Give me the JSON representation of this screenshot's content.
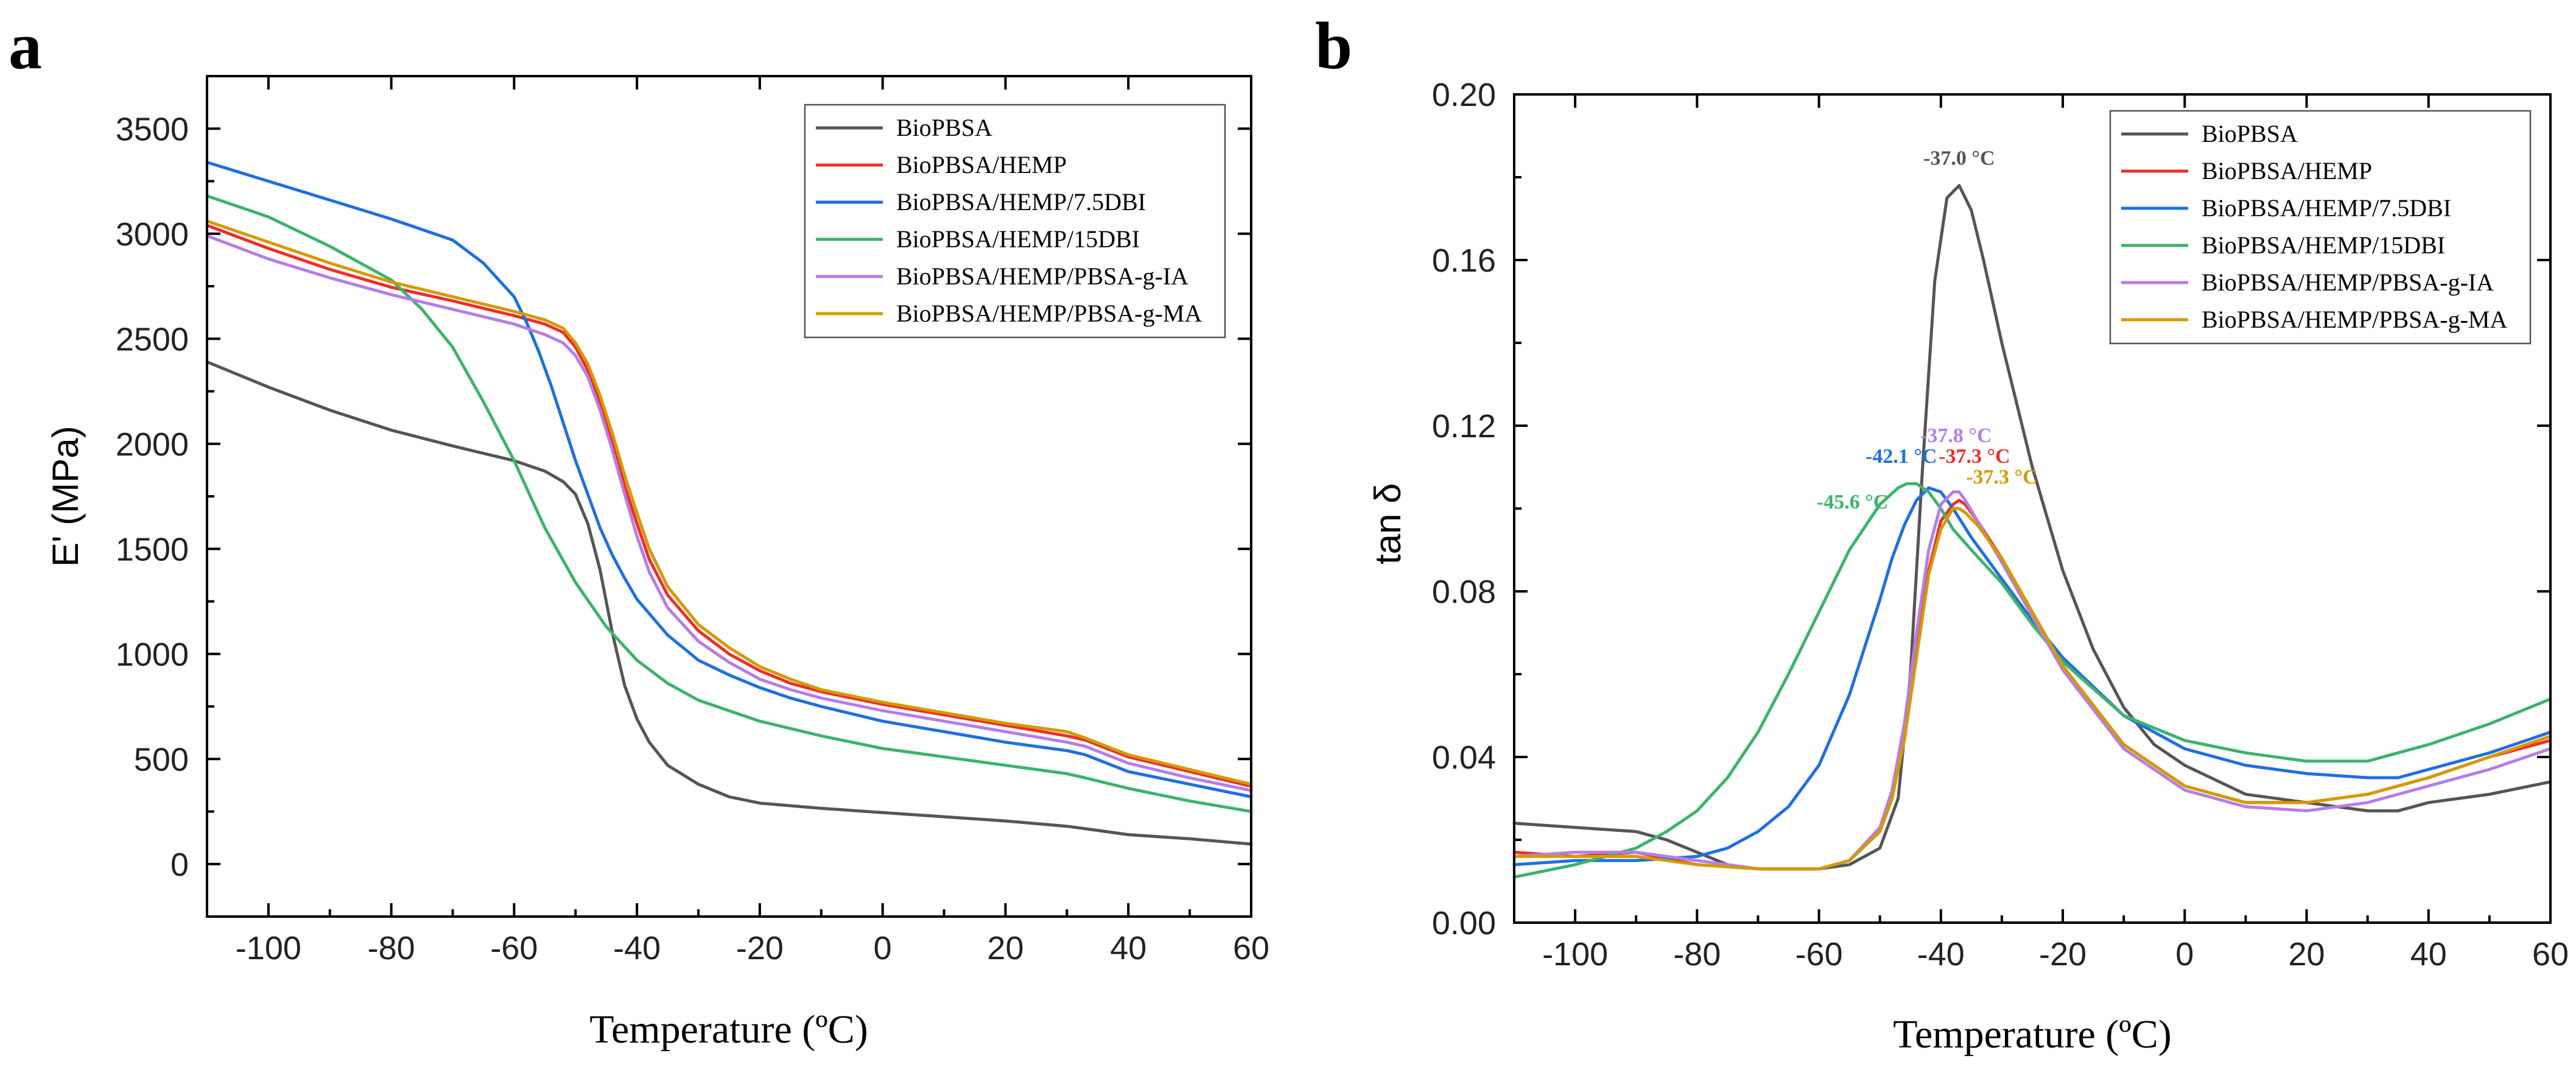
{
  "colors": {
    "BioPBSA": "#555555",
    "BioPBSA/HEMP": "#ee2d2d",
    "BioPBSA/HEMP/7.5DBI": "#1f6fe0",
    "BioPBSA/HEMP/15DBI": "#3db36b",
    "BioPBSA/HEMP/PBSA-g-IA": "#b57ee6",
    "BioPBSA/HEMP/PBSA-g-MA": "#d49a00"
  },
  "chart_data": [
    {
      "panel": "a",
      "type": "line",
      "xlabel": "Temperature (ºC)",
      "ylabel": "E' (MPa)",
      "xlim": [
        -110,
        60
      ],
      "ylim": [
        -250,
        3750
      ],
      "xticks": [
        -100,
        -80,
        -60,
        -40,
        -20,
        0,
        20,
        40,
        60
      ],
      "yticks": [
        0,
        500,
        1000,
        1500,
        2000,
        2500,
        3000,
        3500
      ],
      "legend_position": "top-right",
      "series": [
        {
          "name": "BioPBSA",
          "x": [
            -110,
            -100,
            -90,
            -80,
            -70,
            -60,
            -55,
            -52,
            -50,
            -48,
            -46,
            -44,
            -42,
            -40,
            -38,
            -35,
            -30,
            -25,
            -20,
            -10,
            0,
            10,
            20,
            30,
            35,
            40,
            50,
            60
          ],
          "y": [
            2390,
            2270,
            2160,
            2065,
            1990,
            1920,
            1870,
            1820,
            1760,
            1620,
            1400,
            1100,
            850,
            690,
            580,
            470,
            380,
            320,
            290,
            265,
            245,
            225,
            205,
            180,
            160,
            140,
            120,
            95
          ]
        },
        {
          "name": "BioPBSA/HEMP",
          "x": [
            -110,
            -100,
            -90,
            -80,
            -70,
            -60,
            -55,
            -52,
            -50,
            -48,
            -46,
            -44,
            -42,
            -40,
            -38,
            -35,
            -30,
            -25,
            -20,
            -15,
            -10,
            0,
            10,
            20,
            30,
            33,
            40,
            50,
            60
          ],
          "y": [
            3040,
            2930,
            2830,
            2745,
            2680,
            2610,
            2570,
            2530,
            2460,
            2350,
            2190,
            2000,
            1800,
            1620,
            1450,
            1280,
            1110,
            1000,
            920,
            860,
            820,
            760,
            710,
            660,
            610,
            590,
            510,
            440,
            370
          ]
        },
        {
          "name": "BioPBSA/HEMP/7.5DBI",
          "x": [
            -110,
            -100,
            -90,
            -80,
            -70,
            -65,
            -60,
            -58,
            -56,
            -54,
            -52,
            -50,
            -48,
            -46,
            -44,
            -42,
            -40,
            -35,
            -30,
            -25,
            -20,
            -15,
            -10,
            0,
            10,
            20,
            30,
            33,
            40,
            50,
            60
          ],
          "y": [
            3340,
            3250,
            3160,
            3070,
            2970,
            2860,
            2700,
            2580,
            2440,
            2280,
            2100,
            1920,
            1760,
            1600,
            1470,
            1360,
            1260,
            1090,
            970,
            900,
            840,
            790,
            750,
            680,
            630,
            580,
            540,
            520,
            440,
            380,
            320
          ]
        },
        {
          "name": "BioPBSA/HEMP/15DBI",
          "x": [
            -110,
            -100,
            -90,
            -80,
            -75,
            -70,
            -65,
            -60,
            -55,
            -50,
            -45,
            -40,
            -35,
            -30,
            -20,
            -10,
            0,
            10,
            20,
            30,
            33,
            40,
            50,
            60
          ],
          "y": [
            3180,
            3080,
            2940,
            2780,
            2640,
            2460,
            2200,
            1920,
            1600,
            1340,
            1130,
            970,
            860,
            780,
            680,
            610,
            550,
            510,
            470,
            430,
            410,
            360,
            300,
            250
          ]
        },
        {
          "name": "BioPBSA/HEMP/PBSA-g-IA",
          "x": [
            -110,
            -100,
            -90,
            -80,
            -70,
            -60,
            -55,
            -52,
            -50,
            -48,
            -46,
            -44,
            -42,
            -40,
            -38,
            -35,
            -30,
            -25,
            -20,
            -15,
            -10,
            0,
            10,
            20,
            30,
            33,
            40,
            50,
            60
          ],
          "y": [
            2990,
            2880,
            2790,
            2710,
            2640,
            2570,
            2520,
            2480,
            2420,
            2320,
            2160,
            1970,
            1760,
            1560,
            1390,
            1220,
            1060,
            960,
            880,
            830,
            790,
            730,
            680,
            630,
            580,
            560,
            480,
            410,
            350
          ]
        },
        {
          "name": "BioPBSA/HEMP/PBSA-g-MA",
          "x": [
            -110,
            -100,
            -90,
            -80,
            -70,
            -60,
            -55,
            -52,
            -50,
            -48,
            -46,
            -44,
            -42,
            -40,
            -38,
            -35,
            -30,
            -25,
            -20,
            -15,
            -10,
            0,
            10,
            20,
            30,
            33,
            40,
            50,
            60
          ],
          "y": [
            3060,
            2960,
            2860,
            2770,
            2700,
            2630,
            2590,
            2550,
            2480,
            2380,
            2230,
            2050,
            1850,
            1670,
            1500,
            1320,
            1140,
            1030,
            940,
            880,
            830,
            770,
            720,
            670,
            630,
            600,
            520,
            450,
            380
          ]
        }
      ]
    },
    {
      "panel": "b",
      "type": "line",
      "xlabel": "Temperature (ºC)",
      "ylabel": "tan δ",
      "xlim": [
        -110,
        60
      ],
      "ylim": [
        0,
        0.2
      ],
      "xticks": [
        -100,
        -80,
        -60,
        -40,
        -20,
        0,
        20,
        40,
        60
      ],
      "yticks": [
        "0.00",
        "0.04",
        "0.08",
        "0.12",
        "0.16",
        "0.20"
      ],
      "legend_position": "top-right",
      "series": [
        {
          "name": "BioPBSA",
          "x": [
            -110,
            -100,
            -90,
            -85,
            -80,
            -75,
            -70,
            -65,
            -60,
            -55,
            -50,
            -47,
            -45,
            -43,
            -41,
            -39,
            -37,
            -35,
            -33,
            -30,
            -25,
            -20,
            -15,
            -10,
            -5,
            0,
            10,
            20,
            30,
            35,
            40,
            50,
            60
          ],
          "y": [
            0.024,
            0.023,
            0.022,
            0.02,
            0.017,
            0.014,
            0.013,
            0.013,
            0.013,
            0.014,
            0.018,
            0.03,
            0.06,
            0.11,
            0.155,
            0.175,
            0.178,
            0.172,
            0.16,
            0.14,
            0.11,
            0.085,
            0.066,
            0.052,
            0.043,
            0.038,
            0.031,
            0.029,
            0.027,
            0.027,
            0.029,
            0.031,
            0.034
          ]
        },
        {
          "name": "BioPBSA/HEMP",
          "x": [
            -110,
            -100,
            -90,
            -80,
            -70,
            -60,
            -55,
            -50,
            -48,
            -46,
            -44,
            -42,
            -40,
            -38,
            -37,
            -36,
            -34,
            -30,
            -25,
            -20,
            -10,
            0,
            10,
            20,
            30,
            40,
            50,
            60
          ],
          "y": [
            0.017,
            0.016,
            0.017,
            0.014,
            0.013,
            0.013,
            0.015,
            0.022,
            0.03,
            0.045,
            0.065,
            0.085,
            0.097,
            0.101,
            0.102,
            0.101,
            0.097,
            0.088,
            0.075,
            0.062,
            0.043,
            0.033,
            0.029,
            0.029,
            0.031,
            0.035,
            0.04,
            0.044
          ]
        },
        {
          "name": "BioPBSA/HEMP/7.5DBI",
          "x": [
            -110,
            -100,
            -90,
            -80,
            -75,
            -70,
            -65,
            -60,
            -55,
            -50,
            -48,
            -46,
            -44,
            -42,
            -40,
            -38,
            -35,
            -30,
            -25,
            -20,
            -10,
            0,
            10,
            20,
            30,
            35,
            40,
            50,
            60
          ],
          "y": [
            0.014,
            0.015,
            0.015,
            0.016,
            0.018,
            0.022,
            0.028,
            0.038,
            0.055,
            0.078,
            0.088,
            0.096,
            0.102,
            0.105,
            0.104,
            0.1,
            0.093,
            0.083,
            0.073,
            0.064,
            0.05,
            0.042,
            0.038,
            0.036,
            0.035,
            0.035,
            0.037,
            0.041,
            0.046
          ]
        },
        {
          "name": "BioPBSA/HEMP/15DBI",
          "x": [
            -110,
            -100,
            -90,
            -85,
            -80,
            -75,
            -70,
            -65,
            -60,
            -55,
            -50,
            -47,
            -45.6,
            -44,
            -42,
            -40,
            -38,
            -35,
            -30,
            -25,
            -20,
            -10,
            0,
            10,
            20,
            25,
            30,
            40,
            50,
            60
          ],
          "y": [
            0.011,
            0.014,
            0.018,
            0.022,
            0.027,
            0.035,
            0.046,
            0.06,
            0.075,
            0.09,
            0.101,
            0.105,
            0.106,
            0.106,
            0.104,
            0.1,
            0.095,
            0.09,
            0.082,
            0.072,
            0.063,
            0.05,
            0.044,
            0.041,
            0.039,
            0.039,
            0.039,
            0.043,
            0.048,
            0.054
          ]
        },
        {
          "name": "BioPBSA/HEMP/PBSA-g-IA",
          "x": [
            -110,
            -100,
            -90,
            -80,
            -70,
            -60,
            -55,
            -50,
            -48,
            -46,
            -44,
            -42,
            -40,
            -38,
            -37,
            -36,
            -34,
            -30,
            -25,
            -20,
            -10,
            0,
            10,
            20,
            30,
            40,
            50,
            60
          ],
          "y": [
            0.016,
            0.017,
            0.017,
            0.015,
            0.013,
            0.013,
            0.015,
            0.023,
            0.032,
            0.048,
            0.07,
            0.09,
            0.101,
            0.104,
            0.104,
            0.102,
            0.097,
            0.087,
            0.074,
            0.061,
            0.042,
            0.032,
            0.028,
            0.027,
            0.029,
            0.033,
            0.037,
            0.042
          ]
        },
        {
          "name": "BioPBSA/HEMP/PBSA-g-MA",
          "x": [
            -110,
            -100,
            -90,
            -80,
            -70,
            -60,
            -55,
            -50,
            -48,
            -46,
            -44,
            -42,
            -40,
            -38,
            -37,
            -36,
            -34,
            -30,
            -25,
            -20,
            -10,
            0,
            10,
            20,
            30,
            40,
            50,
            60
          ],
          "y": [
            0.016,
            0.016,
            0.016,
            0.014,
            0.013,
            0.013,
            0.015,
            0.022,
            0.03,
            0.044,
            0.064,
            0.084,
            0.095,
            0.1,
            0.1,
            0.099,
            0.096,
            0.088,
            0.075,
            0.062,
            0.043,
            0.033,
            0.029,
            0.029,
            0.031,
            0.035,
            0.04,
            0.045
          ]
        }
      ],
      "annotations": [
        {
          "text": "-37.0 °C",
          "x": -37.0,
          "y": 0.183,
          "series": "BioPBSA"
        },
        {
          "text": "-42.1 °C",
          "x": -46.5,
          "y": 0.111,
          "series": "BioPBSA/HEMP/7.5DBI"
        },
        {
          "text": "-45.6 °C",
          "x": -54.5,
          "y": 0.1,
          "series": "BioPBSA/HEMP/15DBI"
        },
        {
          "text": "-37.8 °C",
          "x": -37.5,
          "y": 0.116,
          "series": "BioPBSA/HEMP/PBSA-g-IA"
        },
        {
          "text": "-37.3 °C",
          "x": -34.5,
          "y": 0.111,
          "series": "BioPBSA/HEMP"
        },
        {
          "text": "-37.3 °C",
          "x": -30.0,
          "y": 0.106,
          "series": "BioPBSA/HEMP/PBSA-g-MA"
        }
      ]
    }
  ]
}
